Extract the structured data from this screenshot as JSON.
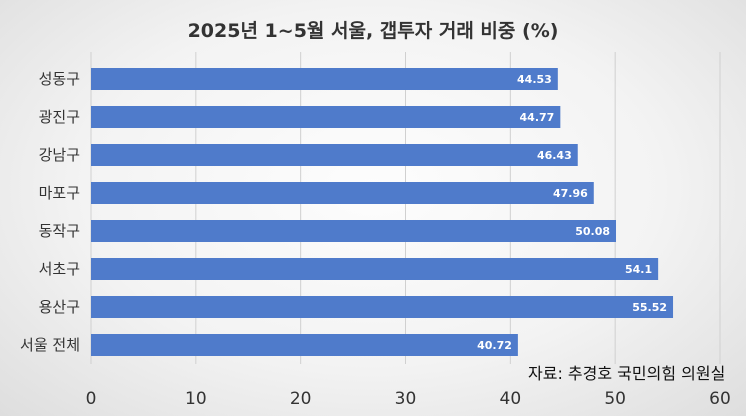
{
  "chart_data": {
    "type": "bar",
    "orientation": "horizontal",
    "title": "2025년 1~5월 서울, 갭투자 거래 비중 (%)",
    "categories": [
      "성동구",
      "광진구",
      "강남구",
      "마포구",
      "동작구",
      "서초구",
      "용산구",
      "서울 전체"
    ],
    "values": [
      44.53,
      44.77,
      46.43,
      47.96,
      50.08,
      54.1,
      55.52,
      40.72
    ],
    "value_labels": [
      "44.53",
      "44.77",
      "46.43",
      "47.96",
      "50.08",
      "54.1",
      "55.52",
      "40.72"
    ],
    "xlim": [
      0,
      60
    ],
    "xticks": [
      "0",
      "10",
      "20",
      "30",
      "40",
      "50",
      "60"
    ],
    "grid": true,
    "bar_color": "#4F7BCB"
  },
  "source_note": "자료: 추경호 국민의힘 의원실"
}
